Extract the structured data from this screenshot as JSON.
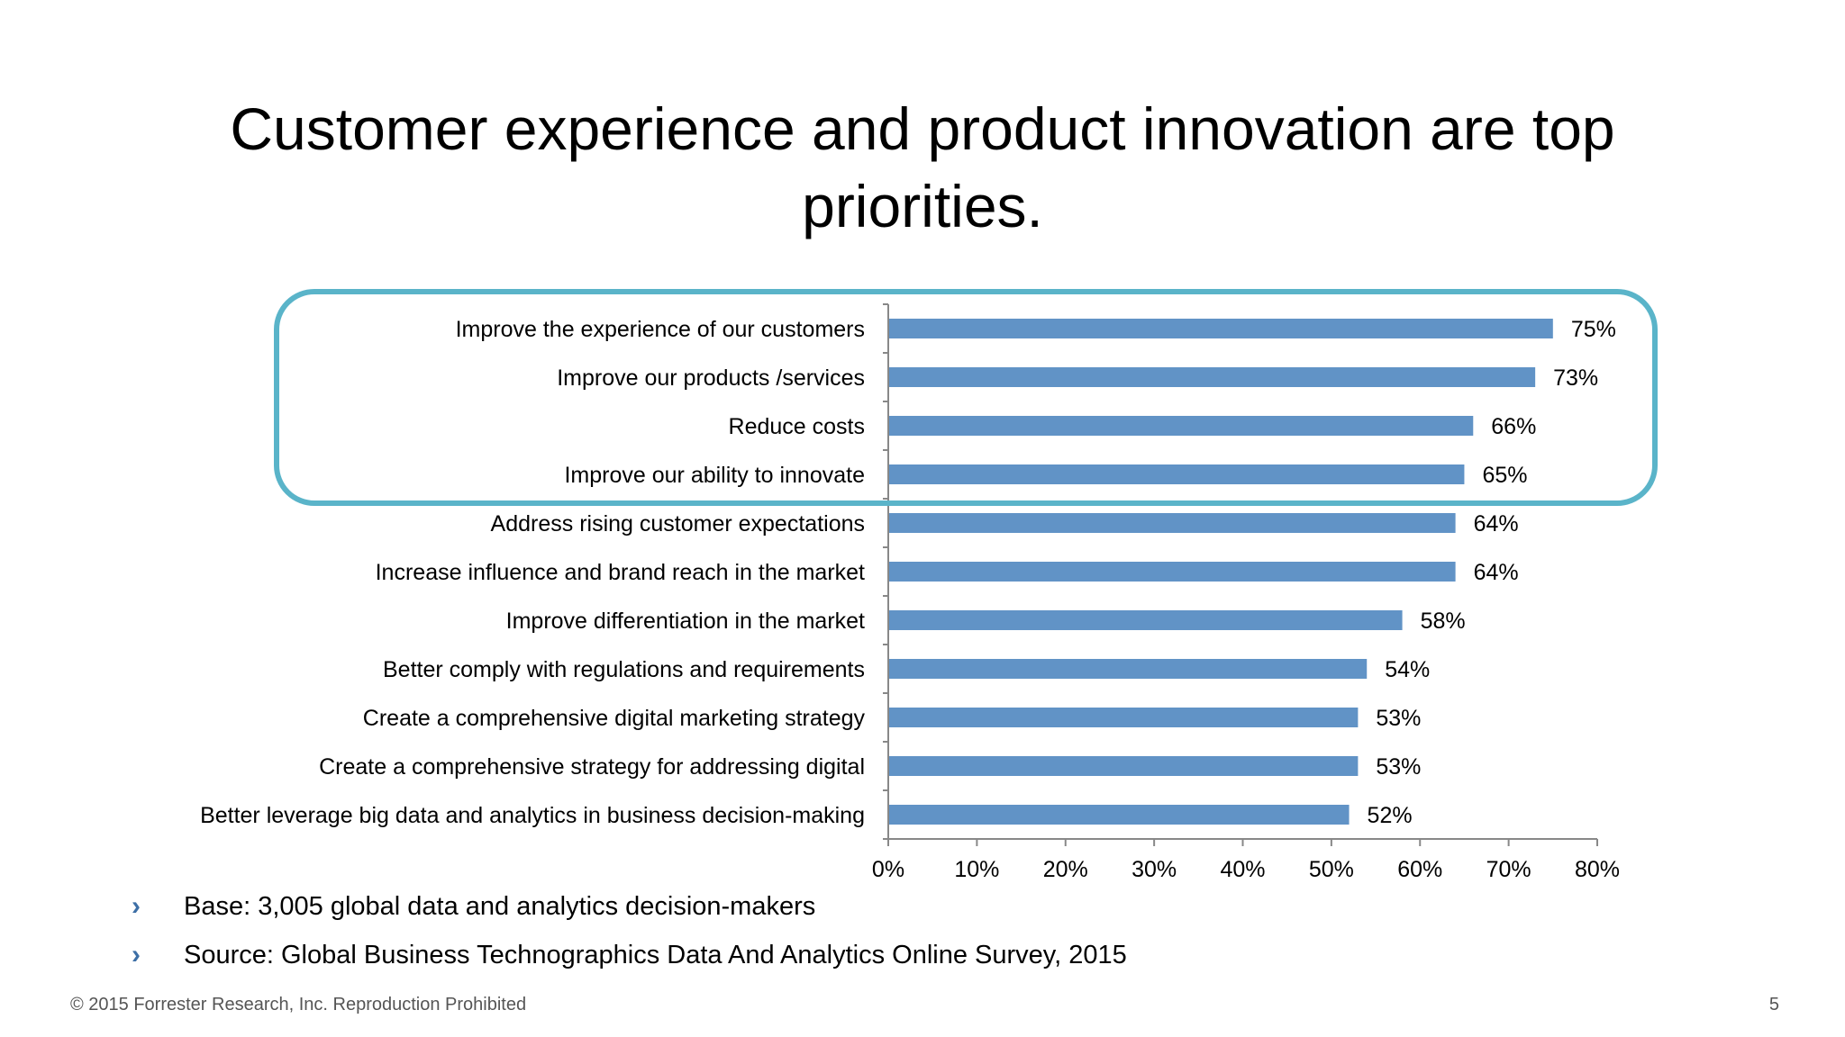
{
  "slide": {
    "title": "Customer experience and product innovation are top priorities.",
    "page_number": "5",
    "footer": "© 2015 Forrester Research, Inc. Reproduction Prohibited",
    "notes": [
      "Base: 3,005 global data and analytics decision-makers",
      "Source: Global Business Technographics Data And Analytics Online Survey, 2015"
    ],
    "bullet_icon": "chevron-right-icon",
    "colors": {
      "bar": "#6193c6",
      "highlight_box": "#5ab4c9",
      "bullet": "#3d6fa6"
    }
  },
  "chart_data": {
    "type": "bar",
    "orientation": "horizontal",
    "categories": [
      "Improve the experience of our customers",
      "Improve our products /services",
      "Reduce costs",
      "Improve our ability to innovate",
      "Address rising customer expectations",
      "Increase influence and brand reach in the market",
      "Improve differentiation in the market",
      "Better comply with regulations and requirements",
      "Create a comprehensive digital marketing strategy",
      "Create a comprehensive strategy for addressing digital",
      "Better leverage big data and analytics in business decision-making"
    ],
    "values": [
      75,
      73,
      66,
      65,
      64,
      64,
      58,
      54,
      53,
      53,
      52
    ],
    "value_labels": [
      "75%",
      "73%",
      "66%",
      "65%",
      "64%",
      "64%",
      "58%",
      "54%",
      "53%",
      "53%",
      "52%"
    ],
    "x_ticks": [
      "0%",
      "10%",
      "20%",
      "30%",
      "40%",
      "50%",
      "60%",
      "70%",
      "80%"
    ],
    "xlim": [
      0,
      80
    ],
    "highlighted_categories": 4,
    "grid": false,
    "legend": "none"
  }
}
